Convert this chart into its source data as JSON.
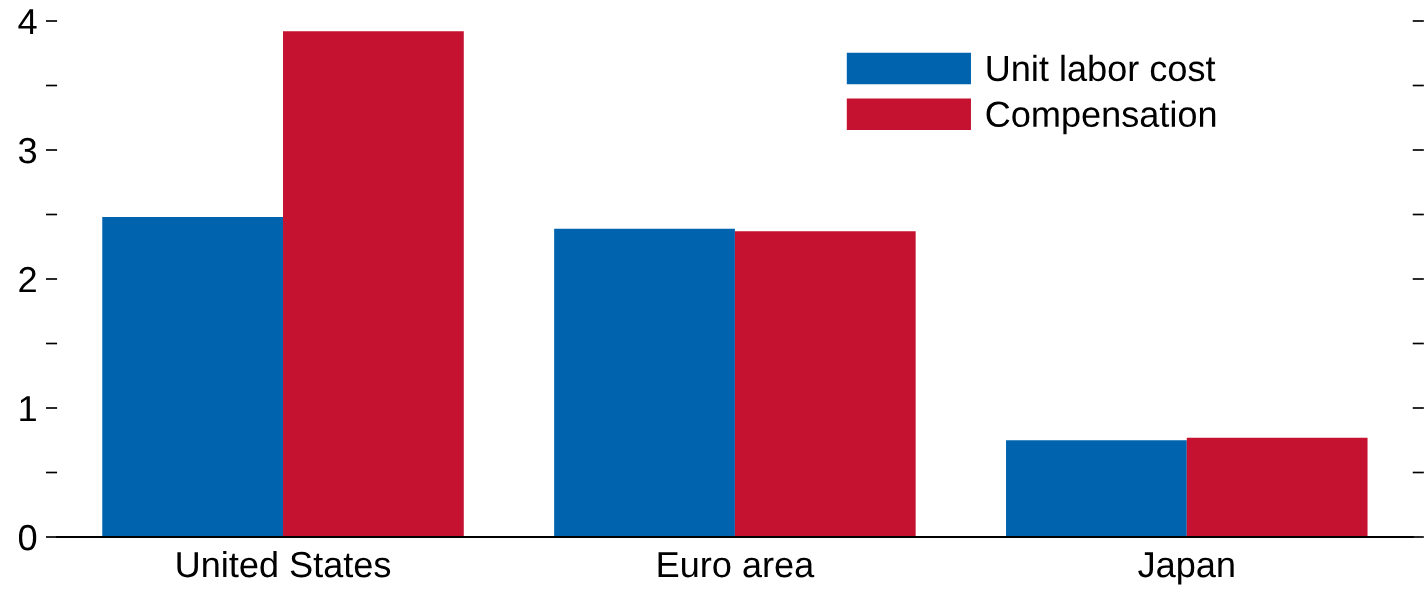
{
  "chart_data": {
    "type": "bar",
    "categories": [
      "United States",
      "Euro area",
      "Japan"
    ],
    "series": [
      {
        "name": "Unit labor cost",
        "color": "#0063ae",
        "values": [
          2.48,
          2.39,
          0.75
        ]
      },
      {
        "name": "Compensation",
        "color": "#c41230",
        "values": [
          3.92,
          2.37,
          0.77
        ]
      }
    ],
    "ylim": [
      0,
      4
    ],
    "yticks": [
      0,
      {
        "value": 0.5,
        "label": null
      },
      1,
      {
        "value": 1.5,
        "label": null
      },
      2,
      {
        "value": 2.5,
        "label": null
      },
      3,
      {
        "value": 3.5,
        "label": null
      },
      4
    ],
    "grid": false,
    "legend": "top right"
  }
}
